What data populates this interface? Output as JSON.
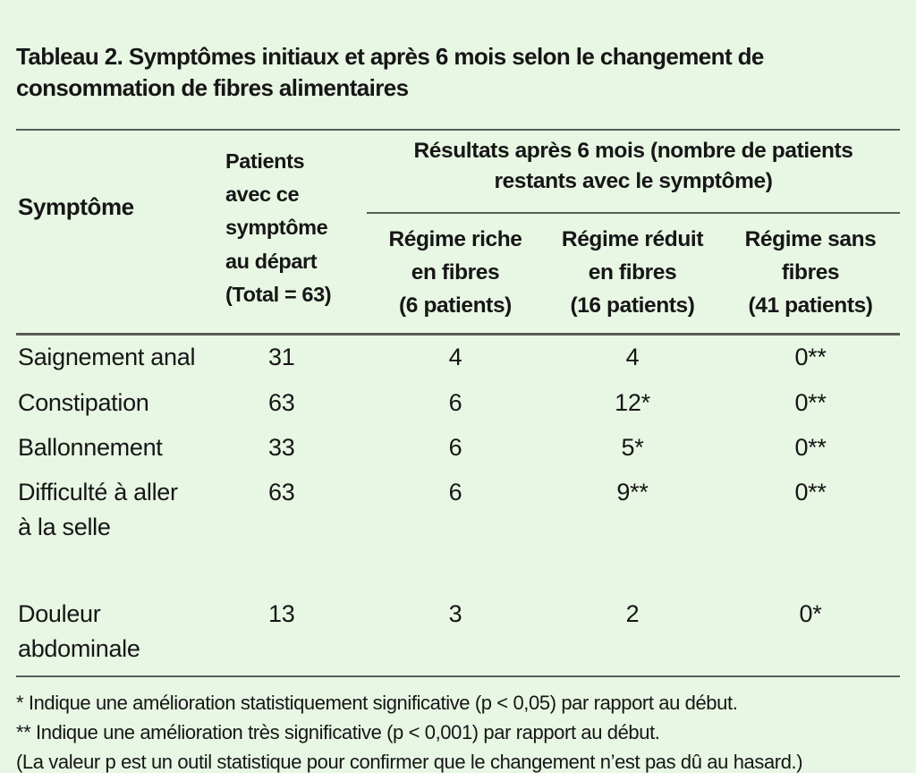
{
  "title": "Tableau 2. Symptômes initiaux et après 6 mois selon le changement de\nconsommation de fibres alimentaires",
  "table": {
    "headers": {
      "symptom": "Symptôme",
      "baseline": "Patients\navec ce\nsymptôme\nau départ\n(Total = 63)",
      "results_group": "Résultats après 6 mois (nombre de patients\nrestants avec le symptôme)",
      "diets": [
        "Régime riche\nen fibres\n(6 patients)",
        "Régime réduit\nen fibres\n(16 patients)",
        "Régime sans\nfibres\n(41 patients)"
      ]
    },
    "rows": [
      {
        "symptom": "Saignement anal",
        "baseline": "31",
        "rich": "4",
        "reduced": "4",
        "none": "0**"
      },
      {
        "symptom": "Constipation",
        "baseline": "63",
        "rich": "6",
        "reduced": "12*",
        "none": "0**"
      },
      {
        "symptom": "Ballonnement",
        "baseline": "33",
        "rich": "6",
        "reduced": "5*",
        "none": "0**"
      },
      {
        "symptom": "Difficulté à aller\nà la selle",
        "baseline": "63",
        "rich": "6",
        "reduced": "9**",
        "none": "0**"
      },
      {
        "symptom": "Douleur\nabdominale",
        "baseline": "13",
        "rich": "3",
        "reduced": "2",
        "none": "0*"
      }
    ]
  },
  "footnotes": [
    "* Indique une amélioration statistiquement significative (p < 0,05) par rapport au début.",
    "** Indique une amélioration très significative (p < 0,001) par rapport au début.",
    "(La valeur p est un outil statistique pour confirmer que le changement n’est pas dû au hasard.)"
  ],
  "colors": {
    "background": "#e8f6e4",
    "text": "#161616",
    "rule": "#565c55"
  },
  "chart_data": {
    "type": "table",
    "title": "Tableau 2. Symptômes initiaux et après 6 mois selon le changement de consommation de fibres alimentaires",
    "columns": [
      "Symptôme",
      "Patients avec ce symptôme au départ (Total = 63)",
      "Résultats après 6 mois — Régime riche en fibres (6 patients)",
      "Résultats après 6 mois — Régime réduit en fibres (16 patients)",
      "Résultats après 6 mois — Régime sans fibres (41 patients)"
    ],
    "rows": [
      [
        "Saignement anal",
        "31",
        "4",
        "4",
        "0**"
      ],
      [
        "Constipation",
        "63",
        "6",
        "12*",
        "0**"
      ],
      [
        "Ballonnement",
        "33",
        "6",
        "5*",
        "0**"
      ],
      [
        "Difficulté à aller à la selle",
        "63",
        "6",
        "9**",
        "0**"
      ],
      [
        "Douleur abdominale",
        "13",
        "3",
        "2",
        "0*"
      ]
    ],
    "footnotes": [
      "* Indique une amélioration statistiquement significative (p < 0,05) par rapport au début.",
      "** Indique une amélioration très significative (p < 0,001) par rapport au début.",
      "(La valeur p est un outil statistique pour confirmer que le changement n'est pas dû au hasard.)"
    ]
  }
}
